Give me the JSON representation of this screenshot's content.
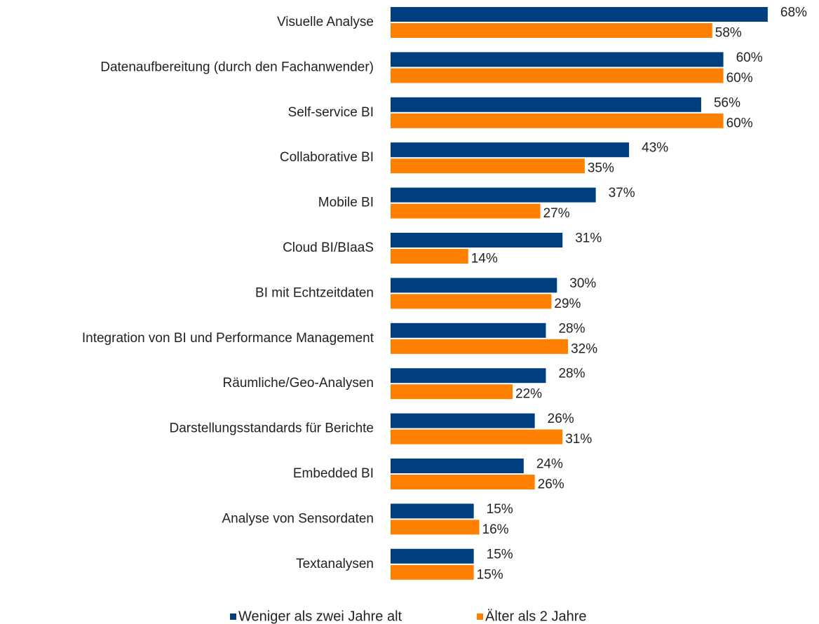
{
  "chart_data": {
    "type": "bar",
    "orientation": "horizontal",
    "categories": [
      "Visuelle Analyse",
      "Datenaufbereitung (durch den Fachanwender)",
      "Self-service BI",
      "Collaborative BI",
      "Mobile BI",
      "Cloud BI/BIaaS",
      "BI mit Echtzeitdaten",
      "Integration von BI und Performance Management",
      "Räumliche/Geo-Analysen",
      "Darstellungsstandards für Berichte",
      "Embedded BI",
      "Analyse von Sensordaten",
      "Textanalysen"
    ],
    "series": [
      {
        "name": "Weniger als zwei Jahre alt",
        "color": "#003f7f",
        "values": [
          68,
          60,
          56,
          43,
          37,
          31,
          30,
          28,
          28,
          26,
          24,
          15,
          15
        ],
        "value_labels": [
          "68%",
          "60%",
          "56%",
          "43%",
          "37%",
          "31%",
          "30%",
          "28%",
          "28%",
          "26%",
          "24%",
          "15%",
          "15%"
        ]
      },
      {
        "name": "Älter als 2 Jahre",
        "color": "#ff8000",
        "values": [
          58,
          60,
          60,
          35,
          27,
          14,
          29,
          32,
          22,
          31,
          26,
          16,
          15
        ],
        "value_labels": [
          "58%",
          "60%",
          "60%",
          "35%",
          "27%",
          "14%",
          "29%",
          "32%",
          "22%",
          "31%",
          "26%",
          "16%",
          "15%"
        ]
      }
    ],
    "legend": "bottom"
  }
}
